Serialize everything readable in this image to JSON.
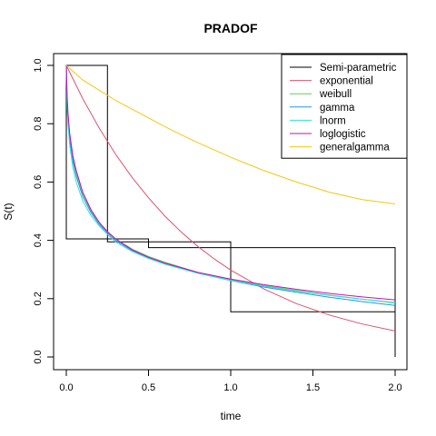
{
  "chart_data": {
    "type": "line",
    "title": "PRADOF",
    "xlabel": "time",
    "ylabel": "S(t)",
    "xlim": [
      0,
      2
    ],
    "ylim": [
      0,
      1
    ],
    "x_ticks": [
      "0.0",
      "0.5",
      "1.0",
      "1.5",
      "2.0"
    ],
    "y_ticks": [
      "0.0",
      "0.2",
      "0.4",
      "0.6",
      "0.8",
      "1.0"
    ],
    "legend_position": "top-right",
    "series": [
      {
        "name": "Semi-parametric",
        "color": "#000000",
        "style": "step-box",
        "x": [
          0,
          0,
          0.25,
          0.25,
          0,
          0,
          0.25,
          0.25,
          0.5,
          0.5,
          0.25,
          0.25,
          0.5,
          0.5,
          1.0,
          1.0,
          0.5,
          0.5,
          1.0,
          1.0,
          2.0,
          2.0,
          1.0,
          1.0,
          2.0,
          2.0
        ],
        "y": [
          0.405,
          1.0,
          1.0,
          0.405,
          0.405,
          1.0,
          1.0,
          0.395,
          0.395,
          0.405,
          0.405,
          0.395,
          0.395,
          0.375,
          0.375,
          0.395,
          0.395,
          0.375,
          0.375,
          0.155,
          0.155,
          0.375,
          0.375,
          0.155,
          0.155,
          0.0
        ]
      },
      {
        "name": "exponential",
        "color": "#DF536B",
        "x": [
          0,
          0.1,
          0.2,
          0.3,
          0.4,
          0.5,
          0.6,
          0.7,
          0.8,
          0.9,
          1.0,
          1.2,
          1.4,
          1.6,
          1.8,
          2.0
        ],
        "y": [
          1.0,
          0.886,
          0.785,
          0.695,
          0.616,
          0.546,
          0.483,
          0.428,
          0.379,
          0.336,
          0.298,
          0.234,
          0.183,
          0.144,
          0.113,
          0.089
        ]
      },
      {
        "name": "weibull",
        "color": "#61D04F",
        "x": [
          0,
          0.005,
          0.01,
          0.02,
          0.04,
          0.06,
          0.1,
          0.15,
          0.2,
          0.25,
          0.3,
          0.4,
          0.5,
          0.6,
          0.8,
          1.0,
          1.2,
          1.4,
          1.6,
          1.8,
          2.0
        ],
        "y": [
          1.0,
          0.88,
          0.83,
          0.76,
          0.68,
          0.63,
          0.56,
          0.5,
          0.46,
          0.43,
          0.405,
          0.37,
          0.345,
          0.325,
          0.29,
          0.265,
          0.245,
          0.228,
          0.212,
          0.198,
          0.185
        ]
      },
      {
        "name": "gamma",
        "color": "#2297E6",
        "x": [
          0,
          0.005,
          0.01,
          0.02,
          0.04,
          0.06,
          0.1,
          0.15,
          0.2,
          0.25,
          0.3,
          0.4,
          0.5,
          0.6,
          0.8,
          1.0,
          1.2,
          1.4,
          1.6,
          1.8,
          2.0
        ],
        "y": [
          1.0,
          0.87,
          0.82,
          0.75,
          0.67,
          0.62,
          0.55,
          0.495,
          0.455,
          0.425,
          0.4,
          0.365,
          0.34,
          0.32,
          0.288,
          0.262,
          0.24,
          0.222,
          0.205,
          0.19,
          0.177
        ]
      },
      {
        "name": "lnorm",
        "color": "#28E2E5",
        "x": [
          0,
          0.005,
          0.01,
          0.02,
          0.04,
          0.06,
          0.1,
          0.15,
          0.2,
          0.25,
          0.3,
          0.4,
          0.5,
          0.6,
          0.8,
          1.0,
          1.2,
          1.4,
          1.6,
          1.8,
          2.0
        ],
        "y": [
          1.0,
          0.85,
          0.8,
          0.73,
          0.65,
          0.6,
          0.535,
          0.485,
          0.45,
          0.42,
          0.395,
          0.362,
          0.338,
          0.318,
          0.287,
          0.263,
          0.243,
          0.226,
          0.211,
          0.198,
          0.187
        ]
      },
      {
        "name": "loglogistic",
        "color": "#CD0BBC",
        "x": [
          0,
          0.005,
          0.01,
          0.02,
          0.04,
          0.06,
          0.1,
          0.15,
          0.2,
          0.25,
          0.3,
          0.4,
          0.5,
          0.6,
          0.8,
          1.0,
          1.2,
          1.4,
          1.6,
          1.8,
          2.0
        ],
        "y": [
          1.0,
          0.9,
          0.84,
          0.77,
          0.69,
          0.64,
          0.565,
          0.505,
          0.462,
          0.43,
          0.405,
          0.368,
          0.342,
          0.322,
          0.29,
          0.267,
          0.248,
          0.232,
          0.218,
          0.206,
          0.196
        ]
      },
      {
        "name": "generalgamma",
        "color": "#F5C710",
        "x": [
          0,
          0.1,
          0.2,
          0.3,
          0.4,
          0.5,
          0.6,
          0.7,
          0.8,
          0.9,
          1.0,
          1.2,
          1.4,
          1.6,
          1.8,
          2.0
        ],
        "y": [
          1.0,
          0.95,
          0.915,
          0.88,
          0.85,
          0.82,
          0.79,
          0.762,
          0.735,
          0.71,
          0.685,
          0.64,
          0.6,
          0.565,
          0.54,
          0.525
        ]
      }
    ]
  }
}
